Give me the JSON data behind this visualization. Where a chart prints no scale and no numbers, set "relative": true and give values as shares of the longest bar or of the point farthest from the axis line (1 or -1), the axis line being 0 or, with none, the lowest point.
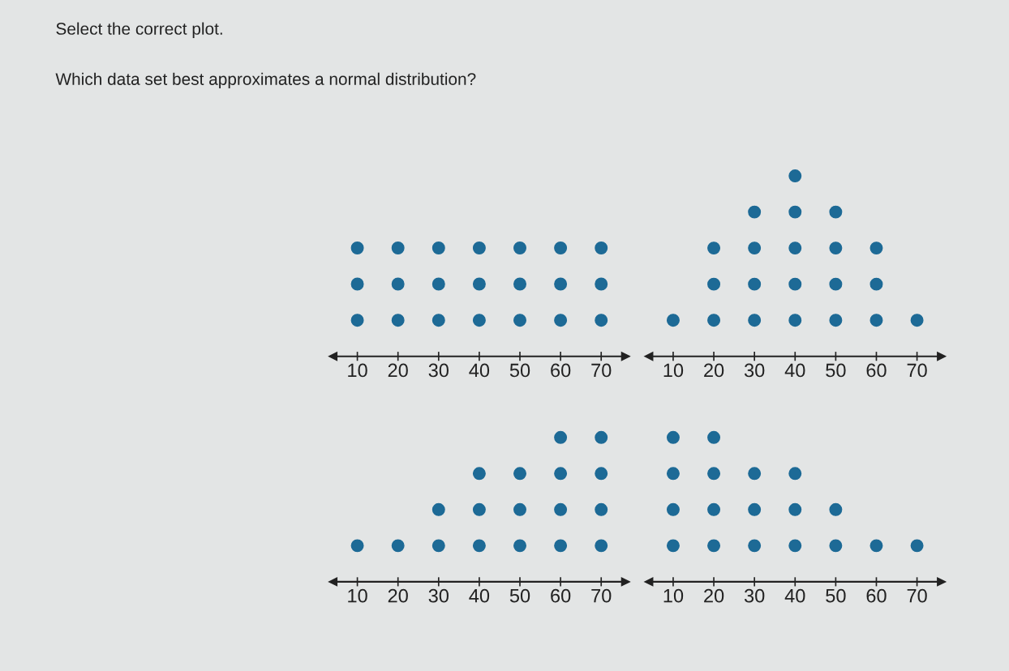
{
  "chart_data": [
    {
      "type": "other",
      "title": "Select the correct plot.",
      "annotations": [
        "Which data set best approximates a normal distribution?"
      ]
    },
    {
      "type": "scatter",
      "relative": true,
      "x": [
        10,
        10,
        10,
        20,
        20,
        20,
        30,
        30,
        30,
        40,
        40,
        40,
        50,
        50,
        50,
        60,
        60,
        60,
        70,
        70,
        70
      ],
      "values": [
        0.333,
        0.667,
        1,
        0.333,
        0.667,
        1,
        0.333,
        0.667,
        1,
        0.333,
        0.667,
        1,
        0.333,
        0.667,
        1,
        0.333,
        0.667,
        1,
        0.333,
        0.667,
        1
      ],
      "color": "#1d6a96",
      "marker": "circle",
      "xlim": [
        4,
        76
      ],
      "xticks": [
        10,
        20,
        30,
        40,
        50,
        60,
        70
      ],
      "tick_labels": "x"
    },
    {
      "type": "scatter",
      "relative": true,
      "x": [
        10,
        20,
        20,
        20,
        30,
        30,
        30,
        30,
        40,
        40,
        40,
        40,
        40,
        50,
        50,
        50,
        50,
        60,
        60,
        60,
        70
      ],
      "values": [
        0.2,
        0.2,
        0.4,
        0.6,
        0.2,
        0.4,
        0.6,
        0.8,
        0.2,
        0.4,
        0.6,
        0.8,
        1,
        0.2,
        0.4,
        0.6,
        0.8,
        0.2,
        0.4,
        0.6,
        0.2
      ],
      "color": "#1d6a96",
      "marker": "circle",
      "xlim": [
        4,
        76
      ],
      "xticks": [
        10,
        20,
        30,
        40,
        50,
        60,
        70
      ],
      "tick_labels": "x"
    },
    {
      "type": "scatter",
      "relative": true,
      "x": [
        10,
        20,
        30,
        30,
        40,
        40,
        40,
        50,
        50,
        50,
        60,
        60,
        60,
        60,
        70,
        70,
        70,
        70
      ],
      "values": [
        0.25,
        0.25,
        0.25,
        0.5,
        0.25,
        0.5,
        0.75,
        0.25,
        0.5,
        0.75,
        0.25,
        0.5,
        0.75,
        1,
        0.25,
        0.5,
        0.75,
        1
      ],
      "color": "#1d6a96",
      "marker": "circle",
      "xlim": [
        4,
        76
      ],
      "xticks": [
        10,
        20,
        30,
        40,
        50,
        60,
        70
      ],
      "tick_labels": "x"
    },
    {
      "type": "scatter",
      "relative": true,
      "x": [
        10,
        10,
        10,
        10,
        20,
        20,
        20,
        20,
        30,
        30,
        30,
        40,
        40,
        40,
        50,
        50,
        60,
        70
      ],
      "values": [
        0.25,
        0.5,
        0.75,
        1,
        0.25,
        0.5,
        0.75,
        1,
        0.25,
        0.5,
        0.75,
        0.25,
        0.5,
        0.75,
        0.25,
        0.5,
        0.25,
        0.25
      ],
      "color": "#1d6a96",
      "marker": "circle",
      "xlim": [
        4,
        76
      ],
      "xticks": [
        10,
        20,
        30,
        40,
        50,
        60,
        70
      ],
      "tick_labels": "x"
    }
  ]
}
